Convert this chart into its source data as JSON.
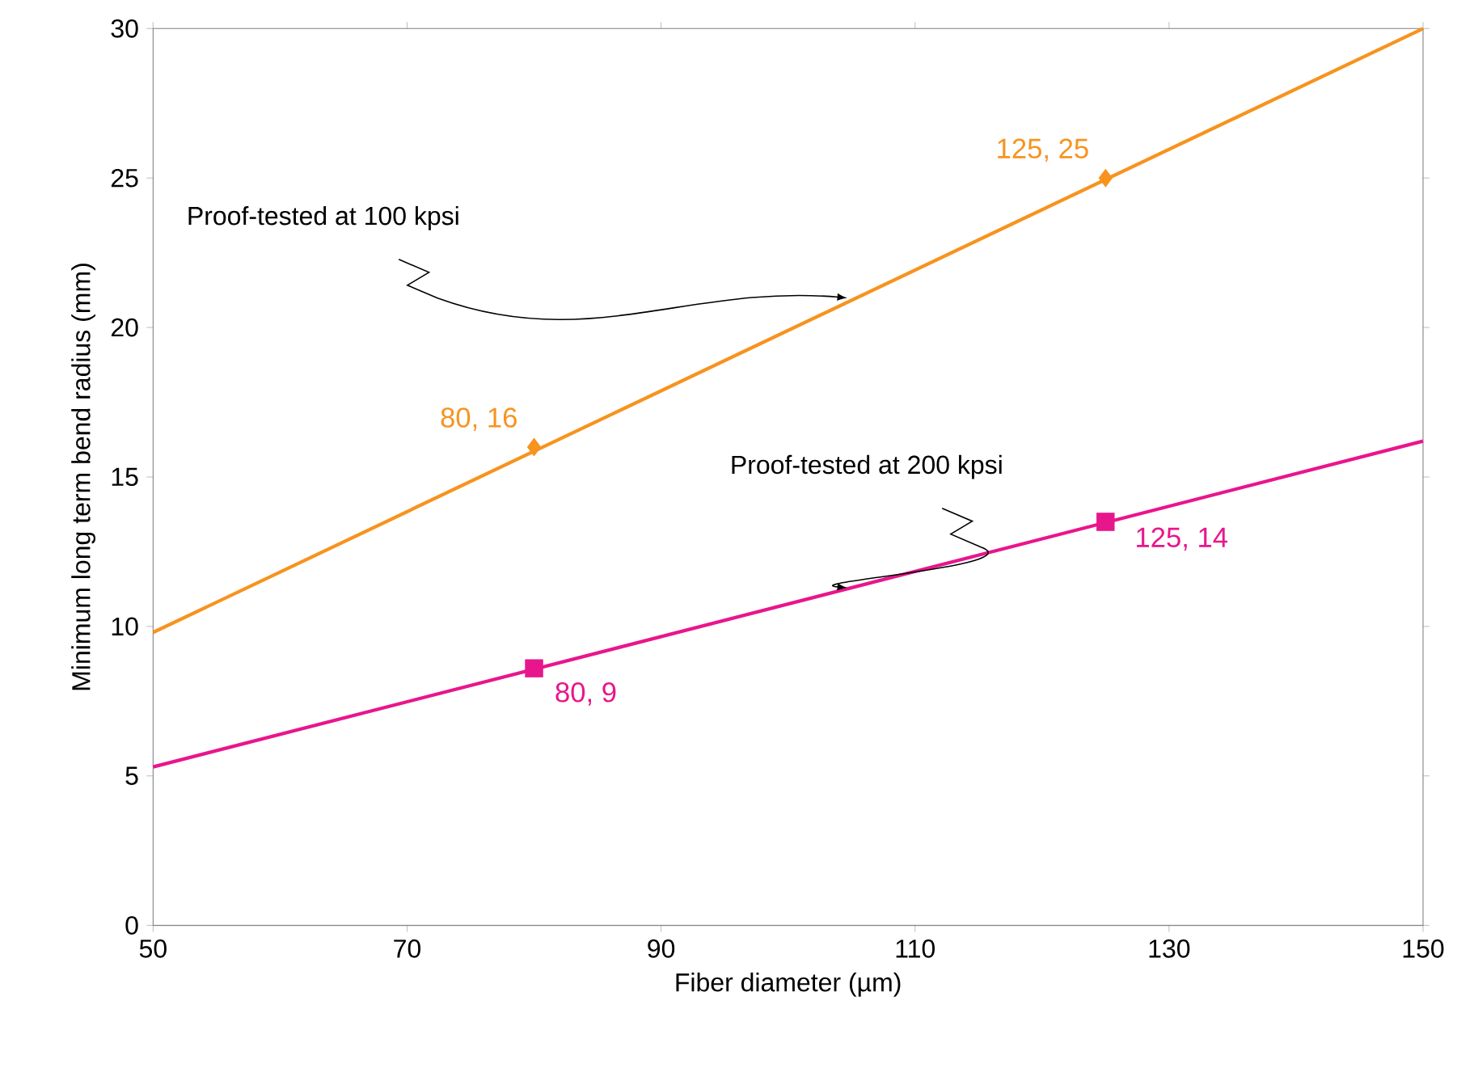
{
  "chart_data": {
    "type": "line",
    "xlabel": "Fiber diameter (µm)",
    "ylabel": "Minimum long term bend radius (mm)",
    "xlim": [
      50,
      150
    ],
    "xticks": [
      50,
      70,
      90,
      110,
      130,
      150
    ],
    "ylim": [
      0,
      30
    ],
    "yticks": [
      0,
      5,
      10,
      15,
      20,
      25,
      30
    ],
    "grid": false,
    "series": [
      {
        "color": "#f7931e",
        "x": [
          50,
          150
        ],
        "values": [
          9.8,
          30
        ],
        "marker": "none"
      },
      {
        "type": "scatter",
        "color": "#f7931e",
        "x": [
          80,
          125
        ],
        "values": [
          16,
          25
        ],
        "marker": "diamond",
        "value_labels": [
          "80, 16",
          "125, 25"
        ]
      },
      {
        "color": "#e8168c",
        "x": [
          50,
          150
        ],
        "values": [
          5.3,
          16.2
        ],
        "marker": "none"
      },
      {
        "type": "scatter",
        "color": "#e8168c",
        "x": [
          80,
          125
        ],
        "values": [
          8.6,
          13.5
        ],
        "marker": "square",
        "value_labels": [
          "80, 9",
          "125, 14"
        ]
      }
    ],
    "annotations": [
      {
        "text": "Proof-tested at 100 kpsi",
        "x": 105,
        "y": 20.99
      },
      {
        "text": "Proof-tested at 200 kpsi",
        "x": 105,
        "y": 11.295
      }
    ]
  }
}
